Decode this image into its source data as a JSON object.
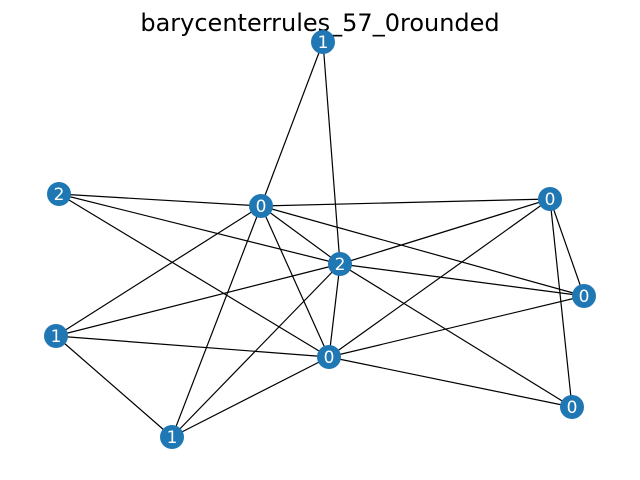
{
  "title": "barycenterrules_57_0rounded",
  "colors": {
    "node": "#1f77b4",
    "edge": "#000000",
    "label": "#ffffff"
  },
  "nodes": [
    {
      "id": "n0",
      "label": "1"
    },
    {
      "id": "n1",
      "label": "2"
    },
    {
      "id": "n2",
      "label": "0"
    },
    {
      "id": "n3",
      "label": "0"
    },
    {
      "id": "n4",
      "label": "2"
    },
    {
      "id": "n5",
      "label": "0"
    },
    {
      "id": "n6",
      "label": "1"
    },
    {
      "id": "n7",
      "label": "0"
    },
    {
      "id": "n8",
      "label": "0"
    },
    {
      "id": "n9",
      "label": "1"
    }
  ],
  "edges": [
    [
      "n0",
      "n2"
    ],
    [
      "n0",
      "n4"
    ],
    [
      "n1",
      "n2"
    ],
    [
      "n1",
      "n4"
    ],
    [
      "n1",
      "n7"
    ],
    [
      "n2",
      "n3"
    ],
    [
      "n2",
      "n4"
    ],
    [
      "n2",
      "n5"
    ],
    [
      "n2",
      "n6"
    ],
    [
      "n2",
      "n7"
    ],
    [
      "n2",
      "n9"
    ],
    [
      "n3",
      "n4"
    ],
    [
      "n3",
      "n5"
    ],
    [
      "n3",
      "n7"
    ],
    [
      "n3",
      "n8"
    ],
    [
      "n4",
      "n5"
    ],
    [
      "n4",
      "n6"
    ],
    [
      "n4",
      "n7"
    ],
    [
      "n4",
      "n8"
    ],
    [
      "n4",
      "n9"
    ],
    [
      "n5",
      "n7"
    ],
    [
      "n6",
      "n7"
    ],
    [
      "n6",
      "n9"
    ],
    [
      "n7",
      "n8"
    ],
    [
      "n7",
      "n9"
    ]
  ]
}
